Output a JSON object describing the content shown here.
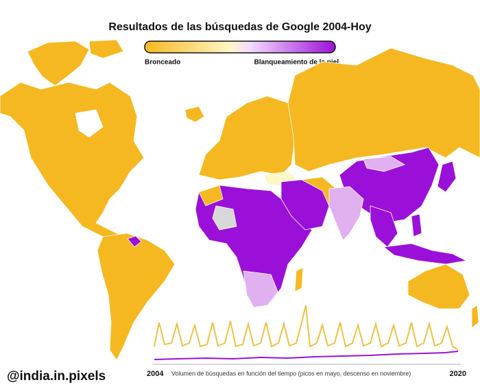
{
  "header": {
    "title": "Resultados de las búsquedas de Google 2004-Hoy"
  },
  "legend": {
    "left_label": "Bronceado",
    "right_label": "Blanqueamiento de la piel"
  },
  "timeline": {
    "start": "2004",
    "caption": "Volumen de búsquedas en función del tiempo (picos en mayo, descenso en noviembre)",
    "end": "2020"
  },
  "credit": "@india.in.pixels"
}
